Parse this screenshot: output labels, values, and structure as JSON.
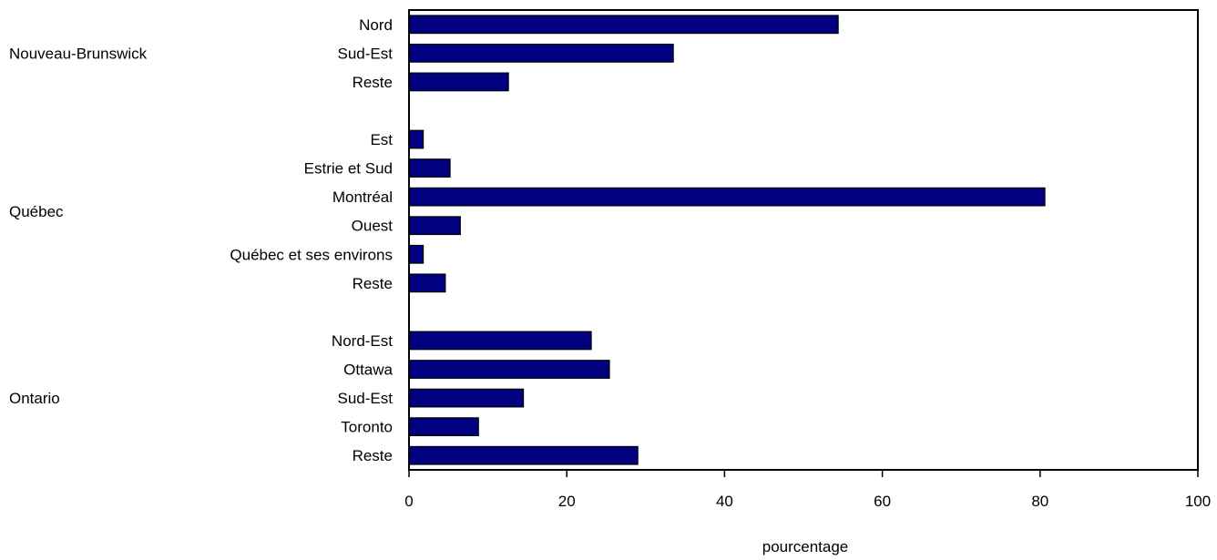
{
  "chart_data": {
    "type": "bar",
    "orientation": "horizontal",
    "xlabel": "pourcentage",
    "xlim": [
      0,
      100
    ],
    "xticks": [
      0,
      20,
      40,
      60,
      80,
      100
    ],
    "bar_color": "#000080",
    "grid": false,
    "groups": [
      {
        "name": "Nouveau-Brunswick",
        "categories": [
          "Nord",
          "Sud-Est",
          "Reste"
        ],
        "values": [
          54.4,
          33.5,
          12.6
        ]
      },
      {
        "name": "Québec",
        "categories": [
          "Est",
          "Estrie et Sud",
          "Montréal",
          "Ouest",
          "Québec et ses environs",
          "Reste"
        ],
        "values": [
          1.8,
          5.2,
          80.6,
          6.5,
          1.8,
          4.6
        ]
      },
      {
        "name": "Ontario",
        "categories": [
          "Nord-Est",
          "Ottawa",
          "Sud-Est",
          "Toronto",
          "Reste"
        ],
        "values": [
          23.1,
          25.4,
          14.5,
          8.8,
          29.0
        ]
      }
    ]
  }
}
